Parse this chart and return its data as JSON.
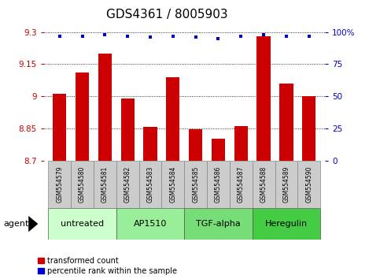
{
  "title": "GDS4361 / 8005903",
  "samples": [
    "GSM554579",
    "GSM554580",
    "GSM554581",
    "GSM554582",
    "GSM554583",
    "GSM554584",
    "GSM554585",
    "GSM554586",
    "GSM554587",
    "GSM554588",
    "GSM554589",
    "GSM554590"
  ],
  "red_values": [
    9.01,
    9.11,
    9.2,
    8.99,
    8.855,
    9.09,
    8.845,
    8.8,
    8.86,
    9.28,
    9.06,
    9.0
  ],
  "blue_values": [
    97,
    97,
    98,
    97,
    96,
    97,
    96,
    95,
    97,
    98,
    97,
    97
  ],
  "ylim": [
    8.7,
    9.3
  ],
  "yticks": [
    8.7,
    8.85,
    9.0,
    9.15,
    9.3
  ],
  "ytick_labels": [
    "8.7",
    "8.85",
    "9",
    "9.15",
    "9.3"
  ],
  "right_yticks": [
    0,
    25,
    50,
    75,
    100
  ],
  "right_ytick_labels": [
    "0",
    "25",
    "50",
    "75",
    "100%"
  ],
  "groups": [
    {
      "label": "untreated",
      "start": 0,
      "end": 3,
      "color": "#ccffcc"
    },
    {
      "label": "AP1510",
      "start": 3,
      "end": 6,
      "color": "#99ee99"
    },
    {
      "label": "TGF-alpha",
      "start": 6,
      "end": 9,
      "color": "#77dd77"
    },
    {
      "label": "Heregulin",
      "start": 9,
      "end": 12,
      "color": "#44cc44"
    }
  ],
  "bar_color": "#cc0000",
  "dot_color": "#0000cc",
  "bar_width": 0.6,
  "title_fontsize": 11,
  "tick_fontsize": 7.5,
  "sample_fontsize": 5.5,
  "group_fontsize": 8,
  "legend_fontsize": 7,
  "agent_fontsize": 8
}
